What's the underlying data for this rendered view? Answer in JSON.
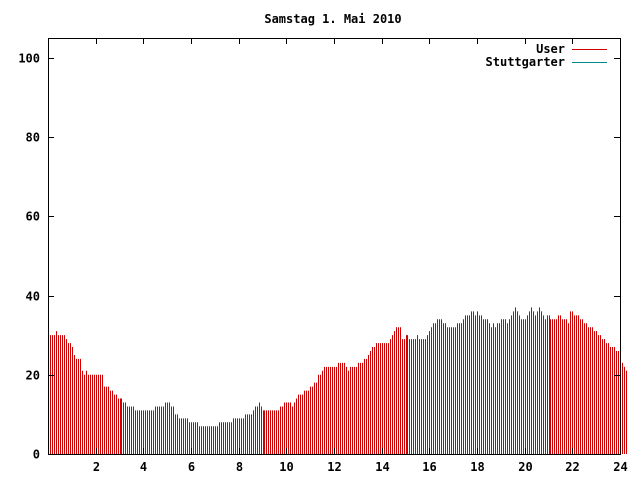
{
  "chart_data": {
    "type": "bar",
    "title": "Samstag 1. Mai 2010",
    "xlabel": "",
    "ylabel": "",
    "xlim": [
      0,
      24
    ],
    "ylim": [
      0,
      105
    ],
    "x_ticks": [
      2,
      4,
      6,
      8,
      10,
      12,
      14,
      16,
      18,
      20,
      22,
      24
    ],
    "y_ticks": [
      0,
      20,
      40,
      60,
      80,
      100
    ],
    "grid": false,
    "legend_position": "top-right",
    "legend": [
      {
        "label": "User",
        "color": "#cc0000"
      },
      {
        "label": "Stuttgarter",
        "color": "#008b8b"
      }
    ],
    "series": [
      {
        "name": "User",
        "color": "#cc0000",
        "interval_minutes": 5,
        "values": [
          31,
          30,
          30,
          30,
          31,
          30,
          30,
          30,
          30,
          29,
          28,
          28,
          27,
          25,
          24,
          24,
          24,
          21,
          20,
          21,
          20,
          20,
          20,
          20,
          20,
          20,
          20,
          20,
          17,
          17,
          17,
          16,
          16,
          15,
          15,
          14,
          14,
          14,
          13,
          13,
          12,
          12,
          12,
          12,
          11,
          11,
          11,
          11,
          11,
          11,
          11,
          11,
          11,
          11,
          12,
          12,
          12,
          12,
          12,
          13,
          13,
          13,
          12,
          12,
          10,
          10,
          9,
          9,
          9,
          9,
          9,
          8,
          8,
          8,
          8,
          8,
          7,
          7,
          7,
          7,
          7,
          7,
          7,
          7,
          7,
          7,
          8,
          8,
          8,
          8,
          8,
          8,
          8,
          9,
          9,
          9,
          9,
          9,
          9,
          10,
          10,
          10,
          10,
          11,
          12,
          12,
          13,
          12,
          11,
          11,
          11,
          11,
          11,
          11,
          11,
          11,
          11,
          12,
          12,
          13,
          13,
          13,
          13,
          12,
          13,
          14,
          15,
          15,
          15,
          16,
          16,
          16,
          17,
          17,
          18,
          18,
          20,
          20,
          21,
          22,
          22,
          22,
          22,
          22,
          22,
          22,
          23,
          23,
          23,
          23,
          22,
          21,
          22,
          22,
          22,
          22,
          23,
          23,
          23,
          24,
          24,
          25,
          26,
          27,
          27,
          28,
          28,
          28,
          28,
          28,
          28,
          28,
          29,
          30,
          31,
          32,
          32,
          32,
          29,
          29,
          30,
          30,
          29,
          29,
          29,
          29,
          30,
          29,
          29,
          29,
          29,
          30,
          31,
          32,
          33,
          33,
          34,
          34,
          34,
          33,
          33,
          32,
          32,
          32,
          32,
          32,
          33,
          33,
          33,
          34,
          35,
          35,
          35,
          36,
          36,
          35,
          36,
          35,
          35,
          34,
          34,
          34,
          33,
          32,
          33,
          32,
          33,
          33,
          34,
          34,
          34,
          33,
          34,
          35,
          36,
          37,
          36,
          35,
          34,
          34,
          34,
          35,
          36,
          37,
          36,
          35,
          36,
          37,
          36,
          35,
          34,
          35,
          35,
          34,
          34,
          34,
          34,
          35,
          35,
          34,
          34,
          34,
          33,
          36,
          36,
          35,
          35,
          35,
          34,
          34,
          33,
          33,
          32,
          32,
          32,
          31,
          31,
          30,
          30,
          29,
          29,
          28,
          28,
          27,
          27,
          27,
          26,
          26,
          25,
          23,
          22,
          21
        ]
      },
      {
        "name": "Stuttgarter",
        "color": "#008b8b",
        "interval_minutes": 5,
        "values": []
      }
    ]
  }
}
